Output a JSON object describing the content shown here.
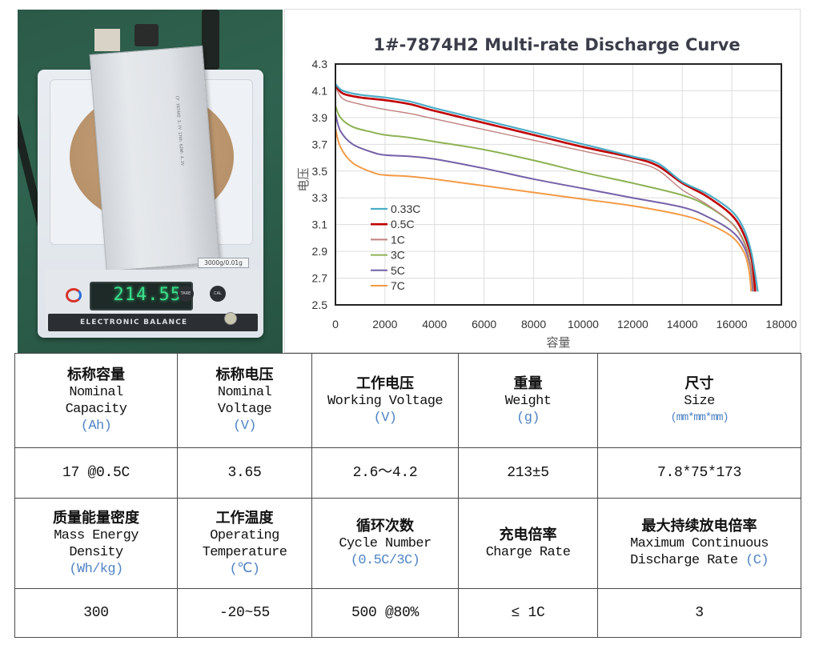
{
  "photo": {
    "scale_reading": "214.55",
    "scale_unit": "g",
    "scale_capacity_label": "3000g/0.01g",
    "scale_brand_text": "ELECTRONIC BALANCE",
    "cell_print": "CF 7874H2 3.7V 17Ah 62Wh 4.2V",
    "button_left": "TARE",
    "button_right": "CAL"
  },
  "chart_data": {
    "type": "line",
    "title": "1#-7874H2 Multi-rate Discharge Curve",
    "xlabel": "容量",
    "ylabel": "电压",
    "xlim": [
      0,
      18000
    ],
    "ylim": [
      2.5,
      4.3
    ],
    "x_ticks": [
      "0",
      "2000",
      "4000",
      "6000",
      "8000",
      "10000",
      "12000",
      "14000",
      "16000",
      "18000"
    ],
    "y_ticks": [
      "4.3",
      "4.1",
      "3.9",
      "3.7",
      "3.5",
      "3.3",
      "3.1",
      "2.9",
      "2.7",
      "2.5"
    ],
    "grid": true,
    "legend_position": "lower-left inside",
    "series": [
      {
        "name": "0.33C",
        "color": "#4bacc6",
        "width": 2.2,
        "points": [
          [
            0,
            4.15
          ],
          [
            300,
            4.1
          ],
          [
            1000,
            4.07
          ],
          [
            2000,
            4.05
          ],
          [
            3000,
            4.02
          ],
          [
            4000,
            3.97
          ],
          [
            6000,
            3.88
          ],
          [
            8000,
            3.79
          ],
          [
            10000,
            3.7
          ],
          [
            12000,
            3.61
          ],
          [
            13000,
            3.56
          ],
          [
            14000,
            3.42
          ],
          [
            15000,
            3.33
          ],
          [
            16000,
            3.2
          ],
          [
            16500,
            3.06
          ],
          [
            16800,
            2.88
          ],
          [
            17050,
            2.6
          ]
        ]
      },
      {
        "name": "0.5C",
        "color": "#c00000",
        "width": 2.6,
        "points": [
          [
            0,
            4.14
          ],
          [
            300,
            4.08
          ],
          [
            1000,
            4.05
          ],
          [
            2000,
            4.03
          ],
          [
            3000,
            4.0
          ],
          [
            4000,
            3.95
          ],
          [
            6000,
            3.86
          ],
          [
            8000,
            3.77
          ],
          [
            10000,
            3.68
          ],
          [
            12000,
            3.6
          ],
          [
            13000,
            3.54
          ],
          [
            14000,
            3.41
          ],
          [
            15000,
            3.31
          ],
          [
            16000,
            3.17
          ],
          [
            16500,
            3.02
          ],
          [
            16800,
            2.84
          ],
          [
            16950,
            2.6
          ]
        ]
      },
      {
        "name": "1C",
        "color": "#c0807e",
        "width": 1.4,
        "points": [
          [
            0,
            4.13
          ],
          [
            300,
            4.04
          ],
          [
            1000,
            4.0
          ],
          [
            2000,
            3.96
          ],
          [
            3000,
            3.93
          ],
          [
            4000,
            3.89
          ],
          [
            6000,
            3.81
          ],
          [
            8000,
            3.73
          ],
          [
            10000,
            3.65
          ],
          [
            12000,
            3.57
          ],
          [
            13000,
            3.51
          ],
          [
            14000,
            3.36
          ],
          [
            15000,
            3.25
          ],
          [
            16000,
            3.11
          ],
          [
            16500,
            2.96
          ],
          [
            16750,
            2.8
          ],
          [
            16900,
            2.6
          ]
        ]
      },
      {
        "name": "3C",
        "color": "#8db254",
        "width": 2.0,
        "points": [
          [
            0,
            3.99
          ],
          [
            200,
            3.9
          ],
          [
            700,
            3.83
          ],
          [
            1500,
            3.79
          ],
          [
            2000,
            3.77
          ],
          [
            3000,
            3.75
          ],
          [
            4000,
            3.72
          ],
          [
            6000,
            3.66
          ],
          [
            8000,
            3.58
          ],
          [
            10000,
            3.49
          ],
          [
            12000,
            3.41
          ],
          [
            14000,
            3.32
          ],
          [
            15000,
            3.24
          ],
          [
            16000,
            3.11
          ],
          [
            16500,
            2.97
          ],
          [
            16750,
            2.8
          ],
          [
            16900,
            2.6
          ]
        ]
      },
      {
        "name": "5C",
        "color": "#7460a8",
        "width": 2.0,
        "points": [
          [
            0,
            3.93
          ],
          [
            200,
            3.8
          ],
          [
            700,
            3.7
          ],
          [
            1500,
            3.64
          ],
          [
            2000,
            3.62
          ],
          [
            3000,
            3.61
          ],
          [
            4000,
            3.59
          ],
          [
            6000,
            3.52
          ],
          [
            8000,
            3.44
          ],
          [
            10000,
            3.37
          ],
          [
            12000,
            3.3
          ],
          [
            14000,
            3.23
          ],
          [
            15000,
            3.16
          ],
          [
            16000,
            3.05
          ],
          [
            16500,
            2.93
          ],
          [
            16750,
            2.78
          ],
          [
            16850,
            2.6
          ]
        ]
      },
      {
        "name": "7C",
        "color": "#f39a45",
        "width": 2.0,
        "points": [
          [
            0,
            3.82
          ],
          [
            200,
            3.68
          ],
          [
            700,
            3.56
          ],
          [
            1500,
            3.49
          ],
          [
            2000,
            3.47
          ],
          [
            3000,
            3.46
          ],
          [
            4000,
            3.44
          ],
          [
            6000,
            3.39
          ],
          [
            8000,
            3.34
          ],
          [
            10000,
            3.29
          ],
          [
            12000,
            3.24
          ],
          [
            14000,
            3.17
          ],
          [
            15000,
            3.11
          ],
          [
            16000,
            3.01
          ],
          [
            16500,
            2.89
          ],
          [
            16700,
            2.75
          ],
          [
            16780,
            2.6
          ]
        ]
      }
    ]
  },
  "table": {
    "headers_row1": [
      {
        "zh": "标称容量",
        "en": [
          "Nominal",
          "Capacity"
        ],
        "unit": "(Ah)"
      },
      {
        "zh": "标称电压",
        "en": [
          "Nominal",
          "Voltage"
        ],
        "unit": "(V)"
      },
      {
        "zh": "工作电压",
        "en": [
          "Working Voltage"
        ],
        "unit": "(V)"
      },
      {
        "zh": "重量",
        "en": [
          "Weight"
        ],
        "unit": "(g)"
      },
      {
        "zh": "尺寸",
        "en": [
          "Size"
        ],
        "unit": "(mm*mm*mm)"
      }
    ],
    "values_row1": [
      "17 @0.5C",
      "3.65",
      "2.6～4.2",
      "213±5",
      "7.8*75*173"
    ],
    "headers_row2": [
      {
        "zh": "质量能量密度",
        "en": [
          "Mass Energy",
          "Density"
        ],
        "unit": "(Wh/kg)"
      },
      {
        "zh": "工作温度",
        "en": [
          "Operating",
          "Temperature"
        ],
        "unit": "(℃)"
      },
      {
        "zh": "循环次数",
        "en": [
          "Cycle Number"
        ],
        "unit": "(0.5C/3C)"
      },
      {
        "zh": "充电倍率",
        "en": [
          "Charge Rate"
        ],
        "unit": ""
      },
      {
        "zh": "最大持续放电倍率",
        "en": [
          "Maximum Continuous",
          "Discharge Rate"
        ],
        "unit": "(C)"
      }
    ],
    "values_row2": [
      "300",
      "-20~55",
      "500 @80%",
      "≤ 1C",
      "3"
    ]
  }
}
